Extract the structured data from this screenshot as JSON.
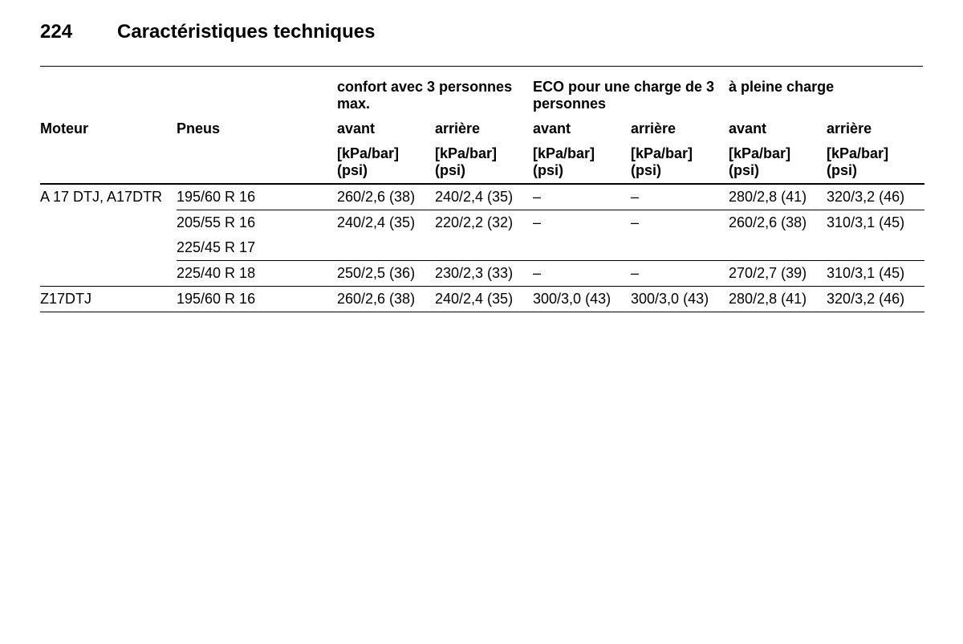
{
  "page_number": "224",
  "title": "Caractéristiques techniques",
  "colors": {
    "text": "#000000",
    "background": "#ffffff"
  },
  "font": {
    "family": "Arial",
    "size_header": 24,
    "size_body": 18
  },
  "columns": {
    "moteur": "Moteur",
    "pneus": "Pneus",
    "group1": "confort avec 3 personnes max.",
    "group2": "ECO pour une charge de 3 personnes",
    "group3": "à pleine charge",
    "avant": "avant",
    "arriere": "arrière",
    "unit": "[kPa/bar] (psi)"
  },
  "rows": [
    {
      "moteur": "A 17 DTJ, A17DTR",
      "pneus": "195/60 R 16",
      "v": [
        "260/2,6 (38)",
        "240/2,4 (35)",
        "–",
        "–",
        "280/2,8 (41)",
        "320/3,2 (46)"
      ]
    },
    {
      "moteur": "",
      "pneus": "205/55 R 16",
      "v": [
        "240/2,4 (35)",
        "220/2,2 (32)",
        "–",
        "–",
        "260/2,6 (38)",
        "310/3,1 (45)"
      ]
    },
    {
      "moteur": "",
      "pneus": "225/45 R 17",
      "v": [
        "",
        "",
        "",
        "",
        "",
        ""
      ]
    },
    {
      "moteur": "",
      "pneus": "225/40 R 18",
      "v": [
        "250/2,5 (36)",
        "230/2,3 (33)",
        "–",
        "–",
        "270/2,7 (39)",
        "310/3,1 (45)"
      ]
    },
    {
      "moteur": "Z17DTJ",
      "pneus": "195/60 R 16",
      "v": [
        "260/2,6 (38)",
        "240/2,4 (35)",
        "300/3,0 (43)",
        "300/3,0 (43)",
        "280/2,8 (41)",
        "320/3,2 (46)"
      ]
    }
  ]
}
